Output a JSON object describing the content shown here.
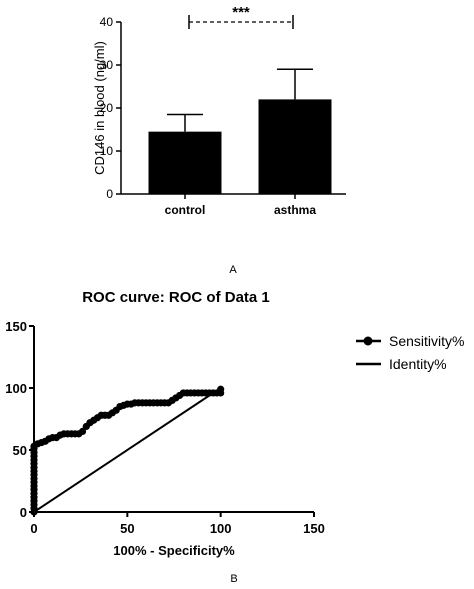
{
  "chart_data": [
    {
      "type": "bar",
      "categories": [
        "control",
        "asthma"
      ],
      "values": [
        14.5,
        22
      ],
      "errors": [
        4,
        7
      ],
      "ylabel": "CD146 in blood (ng/ml)",
      "ylim": [
        0,
        40
      ],
      "yticks": [
        0,
        10,
        20,
        30,
        40
      ],
      "significance": "***",
      "panel_label": "A"
    },
    {
      "type": "line",
      "title": "ROC curve: ROC of Data 1",
      "xlabel": "100% - Specificity%",
      "xlim": [
        0,
        150
      ],
      "ylim": [
        0,
        150
      ],
      "xticks": [
        0,
        50,
        100,
        150
      ],
      "yticks": [
        0,
        50,
        100,
        150
      ],
      "legend_position": "right",
      "series": [
        {
          "name": "Sensitivity%",
          "marker": "circle",
          "x": [
            0,
            0,
            0,
            0,
            0,
            0,
            0,
            0,
            0,
            0,
            0,
            0,
            0,
            0,
            0,
            0,
            0,
            0,
            0,
            2,
            4,
            6,
            8,
            10,
            12,
            14,
            16,
            18,
            20,
            22,
            24,
            26,
            28,
            30,
            32,
            34,
            36,
            38,
            40,
            42,
            44,
            46,
            48,
            50,
            52,
            54,
            56,
            58,
            60,
            62,
            64,
            66,
            68,
            70,
            72,
            74,
            76,
            78,
            80,
            82,
            84,
            86,
            88,
            90,
            92,
            94,
            96,
            98,
            100,
            100
          ],
          "y": [
            0,
            3,
            6,
            9,
            12,
            15,
            18,
            21,
            24,
            27,
            30,
            33,
            36,
            39,
            42,
            45,
            48,
            51,
            53,
            55,
            56,
            57,
            59,
            60,
            60,
            62,
            63,
            63,
            63,
            63,
            63,
            65,
            69,
            72,
            74,
            76,
            78,
            78,
            78,
            80,
            82,
            85,
            86,
            87,
            87,
            88,
            88,
            88,
            88,
            88,
            88,
            88,
            88,
            88,
            88,
            90,
            92,
            94,
            96,
            96,
            96,
            96,
            96,
            96,
            96,
            96,
            96,
            96,
            96,
            99
          ]
        },
        {
          "name": "Identity%",
          "x": [
            0,
            100
          ],
          "y": [
            0,
            100
          ]
        }
      ],
      "panel_label": "B"
    }
  ]
}
